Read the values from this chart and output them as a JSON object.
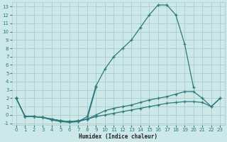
{
  "xlabel": "Humidex (Indice chaleur)",
  "background_color": "#cce8e8",
  "grid_color": "#aacccc",
  "line_color": "#2d7a7a",
  "xlim": [
    -0.5,
    23.5
  ],
  "ylim": [
    -1.2,
    13.5
  ],
  "xtick_labels": [
    "0",
    "1",
    "2",
    "3",
    "4",
    "5",
    "6",
    "7",
    "8",
    "9",
    "10",
    "11",
    "12",
    "13",
    "14",
    "15",
    "16",
    "17",
    "18",
    "19",
    "20",
    "21",
    "22",
    "23"
  ],
  "ytick_labels": [
    "-1",
    "0",
    "1",
    "2",
    "3",
    "4",
    "5",
    "6",
    "7",
    "8",
    "9",
    "10",
    "11",
    "12",
    "13"
  ],
  "ytick_values": [
    -1,
    0,
    1,
    2,
    3,
    4,
    5,
    6,
    7,
    8,
    9,
    10,
    11,
    12,
    13
  ],
  "xtick_values": [
    0,
    1,
    2,
    3,
    4,
    5,
    6,
    7,
    8,
    9,
    10,
    11,
    12,
    13,
    14,
    15,
    16,
    17,
    18,
    19,
    20,
    21,
    22,
    23
  ],
  "series": [
    {
      "x": [
        0,
        1,
        2,
        3,
        4,
        5,
        6,
        7,
        8,
        9,
        10,
        11,
        12,
        13,
        14,
        15,
        16,
        17,
        18,
        19,
        20,
        21,
        22,
        23
      ],
      "y": [
        2.0,
        -0.2,
        -0.2,
        -0.3,
        -0.6,
        -0.8,
        -0.9,
        -0.8,
        -0.2,
        3.5,
        5.5,
        7.0,
        8.0,
        9.0,
        10.5,
        12.0,
        13.2,
        13.2,
        12.0,
        8.5,
        3.3,
        null,
        null,
        null
      ]
    },
    {
      "x": [
        0,
        1,
        2,
        3,
        4,
        5,
        6,
        7,
        8,
        9,
        10,
        11,
        12,
        13,
        14,
        15,
        16,
        17,
        18,
        19,
        20,
        21,
        22,
        23
      ],
      "y": [
        2.0,
        -0.2,
        -0.2,
        -0.3,
        -0.5,
        -0.7,
        -0.8,
        -0.8,
        -0.5,
        3.3,
        null,
        null,
        null,
        null,
        null,
        null,
        null,
        null,
        null,
        null,
        null,
        null,
        null,
        null
      ]
    },
    {
      "x": [
        0,
        1,
        2,
        3,
        4,
        5,
        6,
        7,
        8,
        9,
        10,
        11,
        12,
        13,
        14,
        15,
        16,
        17,
        18,
        19,
        20,
        21,
        22,
        23
      ],
      "y": [
        2.0,
        -0.2,
        -0.2,
        -0.3,
        -0.5,
        -0.7,
        -0.8,
        -0.7,
        -0.5,
        0.0,
        0.5,
        0.8,
        1.0,
        1.2,
        1.5,
        1.8,
        2.0,
        2.2,
        2.5,
        2.8,
        2.8,
        2.0,
        1.0,
        2.0
      ]
    },
    {
      "x": [
        0,
        1,
        2,
        3,
        4,
        5,
        6,
        7,
        8,
        9,
        10,
        11,
        12,
        13,
        14,
        15,
        16,
        17,
        18,
        19,
        20,
        21,
        22,
        23
      ],
      "y": [
        2.0,
        -0.2,
        -0.2,
        -0.3,
        -0.5,
        -0.7,
        -0.8,
        -0.7,
        -0.5,
        -0.2,
        0.0,
        0.2,
        0.4,
        0.6,
        0.8,
        1.0,
        1.2,
        1.4,
        1.5,
        1.6,
        1.6,
        1.5,
        1.0,
        2.0
      ]
    }
  ]
}
